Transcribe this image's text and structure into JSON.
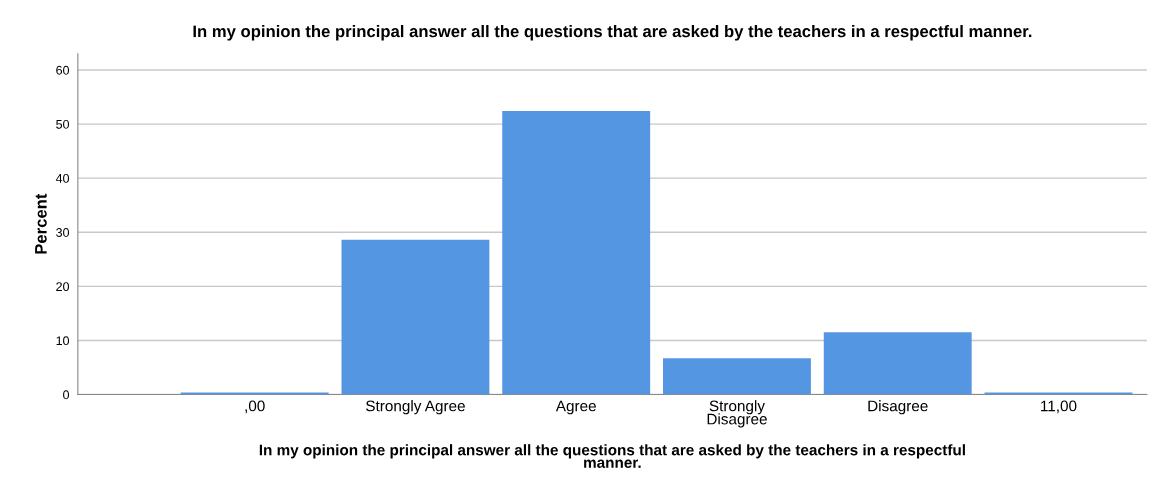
{
  "chart_data": {
    "type": "bar",
    "title": "In my opinion the principal answer all the questions that are asked by the teachers in a respectful manner.",
    "xlabel": "In my opinion the principal answer all the questions that are asked by the teachers in a respectful\nmanner.",
    "ylabel": "Percent",
    "categories": [
      ",00",
      "Strongly Agree",
      "Agree",
      "Strongly\nDisagree",
      "Disagree",
      "11,00"
    ],
    "values": [
      0.4,
      28.6,
      52.4,
      6.7,
      11.5,
      0.4
    ],
    "color": "#5596e3",
    "ylim": [
      0,
      63
    ],
    "yticks": [
      0,
      10,
      20,
      30,
      40,
      50,
      60
    ],
    "grid": "y"
  }
}
